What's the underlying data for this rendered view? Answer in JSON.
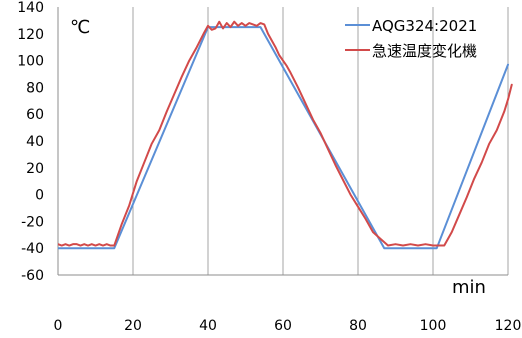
{
  "chart_data": {
    "type": "line",
    "title": "",
    "xlabel": "min",
    "ylabel": "℃",
    "xlim": [
      0,
      120
    ],
    "ylim": [
      -60,
      140
    ],
    "x_ticks": [
      0,
      20,
      40,
      60,
      80,
      100,
      120
    ],
    "y_ticks": [
      -60,
      -40,
      -20,
      0,
      20,
      40,
      60,
      80,
      100,
      120,
      140
    ],
    "x_tick_labels": [
      "0",
      "20",
      "40",
      "60",
      "80",
      "100",
      "120"
    ],
    "y_tick_labels": [
      "-60",
      "-40",
      "-20",
      "0",
      "20",
      "40",
      "60",
      "80",
      "100",
      "120",
      "140"
    ],
    "grid": {
      "x": true,
      "y": false
    },
    "legend_position": "top-right",
    "series": [
      {
        "name": "AQG324:2021",
        "color": "#5b8fd6",
        "points": [
          [
            0,
            -40
          ],
          [
            15,
            -40
          ],
          [
            40,
            125
          ],
          [
            54,
            125
          ],
          [
            87,
            -40
          ],
          [
            101,
            -40
          ],
          [
            120,
            97
          ]
        ]
      },
      {
        "name": "急速温度変化機",
        "color": "#d24a4a",
        "points": [
          [
            0,
            -37
          ],
          [
            1,
            -38
          ],
          [
            2,
            -37
          ],
          [
            3,
            -38
          ],
          [
            4,
            -37
          ],
          [
            5,
            -37
          ],
          [
            6,
            -38
          ],
          [
            7,
            -37
          ],
          [
            8,
            -38
          ],
          [
            9,
            -37
          ],
          [
            10,
            -38
          ],
          [
            11,
            -37
          ],
          [
            12,
            -38
          ],
          [
            13,
            -37
          ],
          [
            14,
            -38
          ],
          [
            15,
            -38
          ],
          [
            17,
            -22
          ],
          [
            19,
            -8
          ],
          [
            21,
            10
          ],
          [
            23,
            24
          ],
          [
            25,
            38
          ],
          [
            27,
            48
          ],
          [
            29,
            62
          ],
          [
            31,
            75
          ],
          [
            33,
            88
          ],
          [
            35,
            100
          ],
          [
            37,
            110
          ],
          [
            39,
            121
          ],
          [
            40,
            126
          ],
          [
            41,
            123
          ],
          [
            42,
            124
          ],
          [
            43,
            129
          ],
          [
            44,
            124
          ],
          [
            45,
            128
          ],
          [
            46,
            125
          ],
          [
            47,
            129
          ],
          [
            48,
            126
          ],
          [
            49,
            128
          ],
          [
            50,
            126
          ],
          [
            51,
            128
          ],
          [
            52,
            127
          ],
          [
            53,
            126
          ],
          [
            54,
            128
          ],
          [
            55,
            127
          ],
          [
            56,
            120
          ],
          [
            57,
            115
          ],
          [
            58,
            110
          ],
          [
            59,
            104
          ],
          [
            60,
            100
          ],
          [
            61,
            96
          ],
          [
            62,
            91
          ],
          [
            64,
            80
          ],
          [
            66,
            68
          ],
          [
            68,
            56
          ],
          [
            70,
            46
          ],
          [
            72,
            34
          ],
          [
            74,
            22
          ],
          [
            76,
            11
          ],
          [
            78,
            0
          ],
          [
            80,
            -9
          ],
          [
            82,
            -18
          ],
          [
            84,
            -28
          ],
          [
            86,
            -33
          ],
          [
            88,
            -38
          ],
          [
            90,
            -37
          ],
          [
            92,
            -38
          ],
          [
            94,
            -37
          ],
          [
            96,
            -38
          ],
          [
            98,
            -37
          ],
          [
            100,
            -38
          ],
          [
            103,
            -38
          ],
          [
            105,
            -28
          ],
          [
            107,
            -15
          ],
          [
            109,
            -2
          ],
          [
            111,
            12
          ],
          [
            113,
            24
          ],
          [
            115,
            38
          ],
          [
            117,
            48
          ],
          [
            119,
            62
          ],
          [
            120,
            71
          ],
          [
            121,
            82
          ]
        ]
      }
    ]
  }
}
